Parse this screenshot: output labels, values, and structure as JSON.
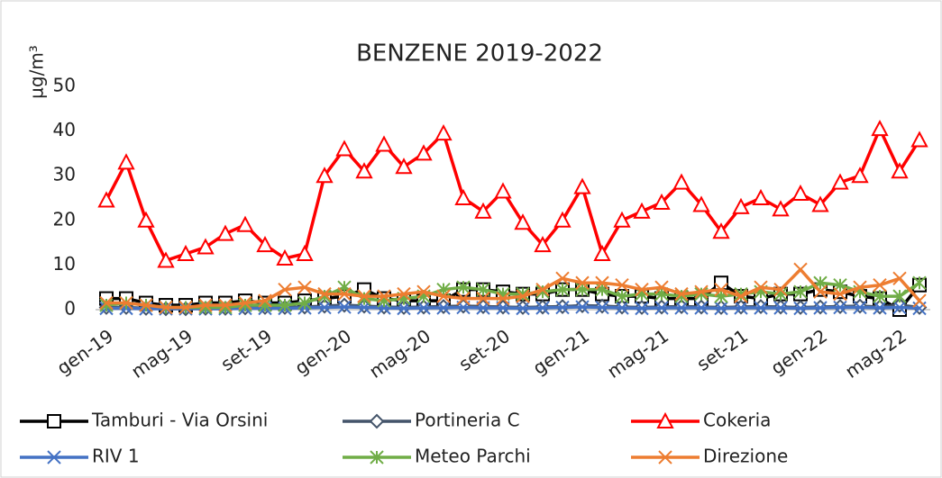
{
  "chart_data": {
    "type": "line",
    "title": "BENZENE 2019-2022",
    "y_label": "µg/m³",
    "categories": [
      "gen-19",
      null,
      null,
      null,
      "mag-19",
      null,
      null,
      null,
      "set-19",
      null,
      null,
      null,
      "gen-20",
      null,
      null,
      null,
      "mag-20",
      null,
      null,
      null,
      "set-20",
      null,
      null,
      null,
      "gen-21",
      null,
      null,
      null,
      "mag-21",
      null,
      null,
      null,
      "set-21",
      null,
      null,
      null,
      "gen-22",
      null,
      null,
      null,
      "mag-22",
      null
    ],
    "ylim": [
      0,
      50
    ],
    "yticks": [
      0,
      10,
      20,
      30,
      40,
      50
    ],
    "grid": false,
    "legend": "bottom",
    "series": [
      {
        "name": "Tamburi - Via Orsini",
        "color": "#000000",
        "marker": "square",
        "values": [
          2.5,
          2.5,
          1.5,
          1,
          1,
          1.5,
          1.5,
          2,
          1.5,
          1.5,
          2,
          2.5,
          3,
          4.5,
          2.5,
          2,
          2,
          2,
          4.5,
          4.5,
          4,
          3.5,
          3.5,
          4.5,
          4.5,
          3.5,
          3,
          3,
          2.5,
          2.5,
          2.5,
          6,
          3,
          2.5,
          3.5,
          3.5,
          4.5,
          4,
          3,
          2.5,
          0,
          5.5
        ]
      },
      {
        "name": "Portineria C",
        "color": "#44546a",
        "marker": "diamond",
        "values": [
          0.5,
          0.5,
          0.3,
          0.2,
          0.2,
          0.3,
          0.3,
          0.4,
          0.5,
          0.5,
          0.6,
          0.8,
          1,
          0.8,
          0.6,
          0.5,
          0.6,
          0.7,
          0.8,
          0.7,
          0.6,
          0.5,
          0.6,
          0.7,
          0.9,
          0.8,
          0.6,
          0.5,
          0.6,
          0.7,
          0.6,
          0.5,
          0.6,
          0.7,
          0.6,
          0.5,
          0.6,
          0.7,
          0.8,
          0.6,
          1,
          0.5
        ]
      },
      {
        "name": "Cokeria",
        "color": "#ff0000",
        "marker": "triangle",
        "values": [
          24.5,
          33,
          20,
          11,
          12.5,
          14,
          17,
          19,
          14.5,
          11.5,
          12.5,
          30,
          36,
          31,
          37,
          32,
          35,
          39.5,
          25,
          22,
          26.5,
          19.5,
          14.5,
          20,
          27.5,
          12.5,
          20,
          22,
          24,
          28.5,
          23.5,
          17.5,
          23,
          25,
          22.5,
          26,
          23.5,
          28.5,
          30,
          40.5,
          31,
          38
        ]
      },
      {
        "name": "RIV 1",
        "color": "#4472c4",
        "marker": "x",
        "values": [
          0.3,
          0.3,
          0.2,
          0.2,
          0.2,
          0.2,
          0.2,
          0.3,
          0.3,
          0.3,
          0.4,
          0.5,
          0.6,
          0.5,
          0.4,
          0.3,
          0.4,
          0.4,
          0.5,
          0.4,
          0.4,
          0.3,
          0.4,
          0.5,
          0.6,
          0.5,
          0.4,
          0.3,
          0.4,
          0.4,
          0.4,
          0.3,
          0.4,
          0.4,
          0.4,
          0.3,
          0.4,
          0.5,
          0.5,
          0.4,
          0.5,
          0.3
        ]
      },
      {
        "name": "Meteo Parchi",
        "color": "#70ad47",
        "marker": "star",
        "values": [
          1,
          1.5,
          1,
          0.5,
          0.5,
          0.5,
          0.5,
          1,
          1,
          1,
          1.5,
          3,
          5,
          2.5,
          2,
          2.5,
          3,
          4.5,
          5,
          4.5,
          3.5,
          3.5,
          4,
          4.5,
          4.5,
          4.5,
          3,
          3.5,
          3.5,
          3,
          3.5,
          3,
          3.5,
          4,
          3.5,
          4,
          6,
          5.5,
          4,
          3,
          3,
          6
        ]
      },
      {
        "name": "Direzione",
        "color": "#ed7d31",
        "marker": "x",
        "values": [
          1.5,
          1.5,
          1,
          0.5,
          0.5,
          1,
          1,
          1.5,
          2,
          4.5,
          5,
          3.5,
          3.5,
          3,
          3,
          3.5,
          4,
          3,
          2.5,
          2.5,
          2.5,
          3,
          4.5,
          7,
          6,
          6,
          5.5,
          4.5,
          5,
          3.5,
          4,
          4.5,
          3,
          5,
          4.5,
          9,
          4,
          3.5,
          5,
          5.5,
          7,
          2
        ]
      }
    ]
  }
}
